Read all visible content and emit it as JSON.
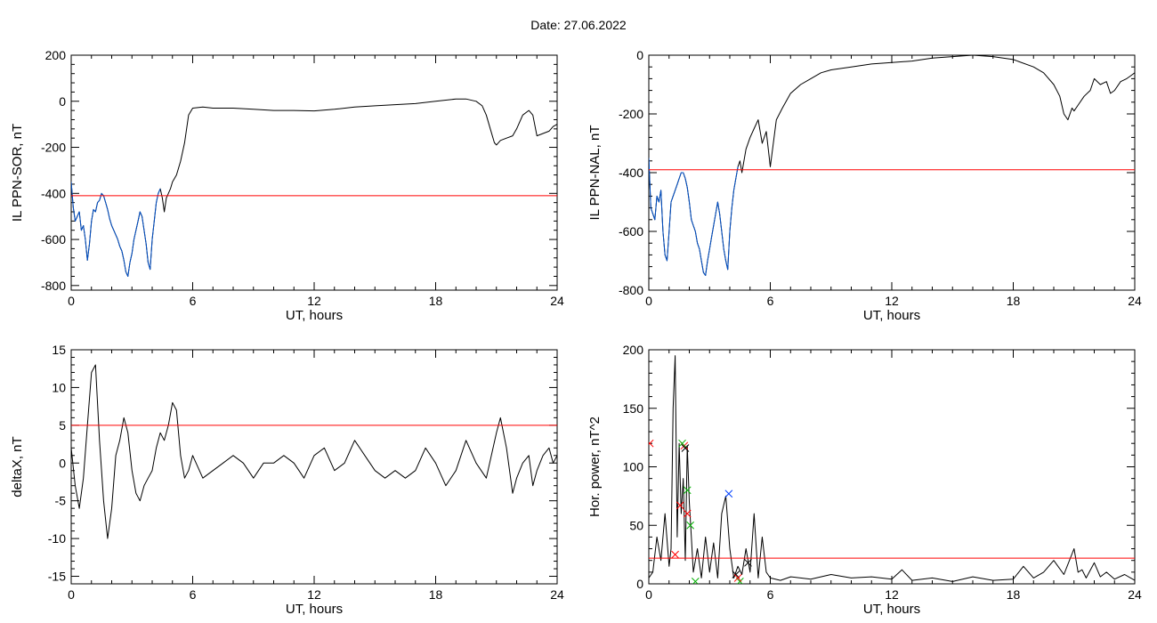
{
  "figure_title": "Date:  27.06.2022",
  "colors": {
    "threshold": "#ff0000",
    "storm_trace": "#0050c8",
    "trace": "#000000",
    "axis": "#000000"
  },
  "chart_data": [
    {
      "type": "line",
      "xlabel": "UT, hours",
      "ylabel": "IL PPN-SOR, nT",
      "xlim": [
        0,
        24
      ],
      "ylim": [
        -820,
        200
      ],
      "xticks": [
        0,
        6,
        12,
        18,
        24
      ],
      "yticks": [
        -800,
        -600,
        -400,
        -200,
        0,
        200
      ],
      "threshold": -410,
      "series": [
        {
          "style": "main",
          "x": [
            0,
            0.1,
            0.2,
            0.3,
            0.4,
            0.5,
            0.6,
            0.7,
            0.8,
            0.9,
            1.0,
            1.1,
            1.2,
            1.3,
            1.4,
            1.5,
            1.6,
            1.7,
            1.8,
            1.9,
            2.0,
            2.1,
            2.2,
            2.3,
            2.4,
            2.5,
            2.6,
            2.7,
            2.8,
            2.9,
            3.0,
            3.1,
            3.2,
            3.3,
            3.4,
            3.5,
            3.6,
            3.7,
            3.8,
            3.9,
            4.0,
            4.1,
            4.2,
            4.3,
            4.4,
            4.5,
            4.6,
            4.7,
            4.8,
            4.9,
            5.0,
            5.2,
            5.4,
            5.6,
            5.8,
            6.0,
            6.5,
            7,
            8,
            9,
            10,
            11,
            12,
            13,
            14,
            15,
            16,
            17,
            18,
            19,
            19.5,
            20,
            20.3,
            20.5,
            20.7,
            20.9,
            21,
            21.2,
            21.5,
            21.8,
            22,
            22.3,
            22.6,
            22.8,
            23,
            23.3,
            23.6,
            23.8,
            24
          ],
          "y": [
            -350,
            -460,
            -520,
            -500,
            -480,
            -560,
            -540,
            -600,
            -690,
            -620,
            -520,
            -470,
            -480,
            -440,
            -430,
            -400,
            -410,
            -440,
            -470,
            -510,
            -540,
            -560,
            -580,
            -600,
            -630,
            -650,
            -690,
            -740,
            -760,
            -700,
            -660,
            -600,
            -560,
            -520,
            -480,
            -500,
            -560,
            -620,
            -700,
            -730,
            -600,
            -520,
            -440,
            -400,
            -380,
            -420,
            -480,
            -420,
            -400,
            -380,
            -350,
            -320,
            -260,
            -180,
            -60,
            -30,
            -25,
            -30,
            -30,
            -35,
            -40,
            -40,
            -42,
            -35,
            -25,
            -20,
            -15,
            -10,
            0,
            10,
            10,
            0,
            -20,
            -60,
            -120,
            -180,
            -190,
            -170,
            -160,
            -150,
            -120,
            -60,
            -40,
            -60,
            -150,
            -140,
            -130,
            -110,
            -100
          ]
        },
        {
          "style": "storm",
          "x": [
            0,
            0.1,
            0.2,
            0.3,
            0.4,
            0.5,
            0.6,
            0.7,
            0.8,
            0.9,
            1.0,
            1.1,
            1.2,
            1.3,
            1.4,
            1.5,
            1.6,
            1.7,
            1.8,
            1.9,
            2.0,
            2.1,
            2.2,
            2.3,
            2.4,
            2.5,
            2.6,
            2.7,
            2.8,
            2.9,
            3.0,
            3.1,
            3.2,
            3.3,
            3.4,
            3.5,
            3.6,
            3.7,
            3.8,
            3.9,
            4.0,
            4.1,
            4.2,
            4.3,
            4.4
          ],
          "y": [
            -350,
            -460,
            -520,
            -500,
            -480,
            -560,
            -540,
            -600,
            -690,
            -620,
            -520,
            -470,
            -480,
            -440,
            -430,
            -400,
            -410,
            -440,
            -470,
            -510,
            -540,
            -560,
            -580,
            -600,
            -630,
            -650,
            -690,
            -740,
            -760,
            -700,
            -660,
            -600,
            -560,
            -520,
            -480,
            -500,
            -560,
            -620,
            -700,
            -730,
            -600,
            -520,
            -440,
            -400,
            -380
          ]
        }
      ]
    },
    {
      "type": "line",
      "xlabel": "UT, hours",
      "ylabel": "IL PPN-NAL, nT",
      "xlim": [
        0,
        24
      ],
      "ylim": [
        -800,
        0
      ],
      "xticks": [
        0,
        6,
        12,
        18,
        24
      ],
      "yticks": [
        -800,
        -600,
        -400,
        -200,
        0
      ],
      "threshold": -390,
      "series": [
        {
          "style": "main",
          "x": [
            0,
            0.1,
            0.2,
            0.3,
            0.4,
            0.5,
            0.6,
            0.7,
            0.8,
            0.9,
            1.0,
            1.1,
            1.2,
            1.3,
            1.4,
            1.5,
            1.6,
            1.7,
            1.8,
            1.9,
            2.0,
            2.1,
            2.2,
            2.3,
            2.4,
            2.5,
            2.6,
            2.7,
            2.8,
            2.9,
            3.0,
            3.1,
            3.2,
            3.3,
            3.4,
            3.5,
            3.6,
            3.7,
            3.8,
            3.9,
            4.0,
            4.1,
            4.2,
            4.3,
            4.4,
            4.5,
            4.6,
            4.8,
            5.0,
            5.2,
            5.4,
            5.6,
            5.8,
            6.0,
            6.3,
            6.6,
            7,
            7.5,
            8,
            8.5,
            9,
            10,
            11,
            12,
            13,
            14,
            15,
            16,
            17,
            18,
            19,
            19.5,
            20,
            20.3,
            20.5,
            20.7,
            20.9,
            21,
            21.2,
            21.5,
            21.8,
            22,
            22.3,
            22.6,
            22.8,
            23,
            23.3,
            23.6,
            23.8,
            24
          ],
          "y": [
            -350,
            -520,
            -540,
            -560,
            -480,
            -500,
            -460,
            -600,
            -680,
            -700,
            -600,
            -500,
            -480,
            -460,
            -440,
            -420,
            -400,
            -400,
            -420,
            -450,
            -500,
            -560,
            -580,
            -600,
            -640,
            -660,
            -700,
            -740,
            -750,
            -700,
            -660,
            -620,
            -580,
            -540,
            -500,
            -540,
            -600,
            -660,
            -700,
            -730,
            -600,
            -520,
            -460,
            -420,
            -380,
            -360,
            -400,
            -320,
            -280,
            -250,
            -220,
            -300,
            -260,
            -380,
            -220,
            -180,
            -130,
            -100,
            -80,
            -60,
            -50,
            -40,
            -30,
            -25,
            -20,
            -10,
            -5,
            0,
            -5,
            -15,
            -40,
            -60,
            -100,
            -140,
            -200,
            -220,
            -180,
            -190,
            -170,
            -140,
            -120,
            -80,
            -100,
            -90,
            -130,
            -120,
            -90,
            -80,
            -70,
            -60
          ]
        },
        {
          "style": "storm",
          "x": [
            0,
            0.1,
            0.2,
            0.3,
            0.4,
            0.5,
            0.6,
            0.7,
            0.8,
            0.9,
            1.0,
            1.1,
            1.2,
            1.3,
            1.4,
            1.5,
            1.6,
            1.7,
            1.8,
            1.9,
            2.0,
            2.1,
            2.2,
            2.3,
            2.4,
            2.5,
            2.6,
            2.7,
            2.8,
            2.9,
            3.0,
            3.1,
            3.2,
            3.3,
            3.4,
            3.5,
            3.6,
            3.7,
            3.8,
            3.9,
            4.0,
            4.1,
            4.2,
            4.3,
            4.4
          ],
          "y": [
            -350,
            -520,
            -540,
            -560,
            -480,
            -500,
            -460,
            -600,
            -680,
            -700,
            -600,
            -500,
            -480,
            -460,
            -440,
            -420,
            -400,
            -400,
            -420,
            -450,
            -500,
            -560,
            -580,
            -600,
            -640,
            -660,
            -700,
            -740,
            -750,
            -700,
            -660,
            -620,
            -580,
            -540,
            -500,
            -540,
            -600,
            -660,
            -700,
            -730,
            -600,
            -520,
            -460,
            -420,
            -380
          ]
        }
      ]
    },
    {
      "type": "line",
      "xlabel": "UT, hours",
      "ylabel": "deltaX, nT",
      "xlim": [
        0,
        24
      ],
      "ylim": [
        -16,
        15
      ],
      "xticks": [
        0,
        6,
        12,
        18,
        24
      ],
      "yticks": [
        -15,
        -10,
        -5,
        0,
        5,
        10,
        15
      ],
      "threshold": 5,
      "series": [
        {
          "style": "main",
          "x": [
            0,
            0.2,
            0.4,
            0.6,
            0.8,
            1.0,
            1.2,
            1.4,
            1.6,
            1.8,
            2.0,
            2.2,
            2.4,
            2.6,
            2.8,
            3.0,
            3.2,
            3.4,
            3.6,
            3.8,
            4.0,
            4.2,
            4.4,
            4.6,
            4.8,
            5.0,
            5.2,
            5.4,
            5.6,
            5.8,
            6.0,
            6.5,
            7,
            7.5,
            8,
            8.5,
            9,
            9.5,
            10,
            10.5,
            11,
            11.5,
            12,
            12.5,
            13,
            13.5,
            14,
            14.5,
            15,
            15.5,
            16,
            16.5,
            17,
            17.5,
            18,
            18.5,
            19,
            19.5,
            20,
            20.5,
            21,
            21.2,
            21.5,
            21.8,
            22,
            22.3,
            22.6,
            22.8,
            23,
            23.3,
            23.6,
            23.8,
            24
          ],
          "y": [
            2,
            -3,
            -6,
            -2,
            5,
            12,
            13,
            3,
            -5,
            -10,
            -6,
            1,
            3,
            6,
            4,
            -1,
            -4,
            -5,
            -3,
            -2,
            -1,
            2,
            4,
            3,
            5,
            8,
            7,
            1,
            -2,
            -1,
            1,
            -2,
            -1,
            0,
            1,
            0,
            -2,
            0,
            0,
            1,
            0,
            -2,
            1,
            2,
            -1,
            0,
            3,
            1,
            -1,
            -2,
            -1,
            -2,
            -1,
            2,
            0,
            -3,
            -1,
            3,
            0,
            -2,
            4,
            6,
            2,
            -4,
            -2,
            0,
            1,
            -3,
            -1,
            1,
            2,
            0,
            1
          ]
        }
      ]
    },
    {
      "type": "line",
      "xlabel": "UT, hours",
      "ylabel": "Hor. power, nT^2",
      "xlim": [
        0,
        24
      ],
      "ylim": [
        0,
        200
      ],
      "xticks": [
        0,
        6,
        12,
        18,
        24
      ],
      "yticks": [
        0,
        50,
        100,
        150,
        200
      ],
      "threshold": 22,
      "series": [
        {
          "style": "main",
          "x": [
            0,
            0.2,
            0.4,
            0.6,
            0.8,
            1.0,
            1.1,
            1.2,
            1.3,
            1.4,
            1.5,
            1.6,
            1.7,
            1.8,
            1.9,
            2.0,
            2.1,
            2.2,
            2.4,
            2.6,
            2.8,
            3.0,
            3.2,
            3.4,
            3.6,
            3.8,
            4.0,
            4.2,
            4.4,
            4.6,
            4.8,
            5.0,
            5.2,
            5.4,
            5.6,
            5.8,
            6.0,
            6.5,
            7,
            8,
            9,
            10,
            11,
            12,
            12.5,
            13,
            14,
            15,
            16,
            17,
            18,
            18.5,
            19,
            19.5,
            20,
            20.5,
            21,
            21.2,
            21.4,
            21.6,
            22,
            22.3,
            22.6,
            23,
            23.5,
            24
          ],
          "y": [
            5,
            10,
            40,
            20,
            60,
            15,
            30,
            150,
            195,
            40,
            120,
            60,
            90,
            20,
            118,
            70,
            40,
            10,
            30,
            5,
            40,
            10,
            35,
            5,
            60,
            75,
            30,
            5,
            15,
            8,
            30,
            10,
            60,
            5,
            40,
            10,
            5,
            3,
            6,
            4,
            8,
            5,
            6,
            4,
            12,
            3,
            5,
            2,
            6,
            3,
            4,
            15,
            5,
            10,
            20,
            8,
            30,
            10,
            12,
            5,
            18,
            6,
            10,
            4,
            8,
            3
          ]
        }
      ],
      "markers": [
        {
          "x": 0.05,
          "y": 120,
          "color": "#ff0000"
        },
        {
          "x": 1.55,
          "y": 67,
          "color": "#ff0000"
        },
        {
          "x": 1.75,
          "y": 118,
          "color": "#ff0000"
        },
        {
          "x": 1.9,
          "y": 60,
          "color": "#ff0000"
        },
        {
          "x": 1.3,
          "y": 25,
          "color": "#ff0000"
        },
        {
          "x": 1.65,
          "y": 120,
          "color": "#00b000"
        },
        {
          "x": 1.9,
          "y": 80,
          "color": "#00b000"
        },
        {
          "x": 2.05,
          "y": 50,
          "color": "#00b000"
        },
        {
          "x": 2.3,
          "y": 2,
          "color": "#00b000"
        },
        {
          "x": 4.5,
          "y": 2,
          "color": "#00b000"
        },
        {
          "x": 3.95,
          "y": 77,
          "color": "#0040ff"
        },
        {
          "x": 1.8,
          "y": 116,
          "color": "#000000"
        },
        {
          "x": 4.3,
          "y": 8,
          "color": "#000000"
        },
        {
          "x": 4.9,
          "y": 18,
          "color": "#000000"
        },
        {
          "x": 4.4,
          "y": 5,
          "color": "#ff0000"
        }
      ]
    }
  ]
}
